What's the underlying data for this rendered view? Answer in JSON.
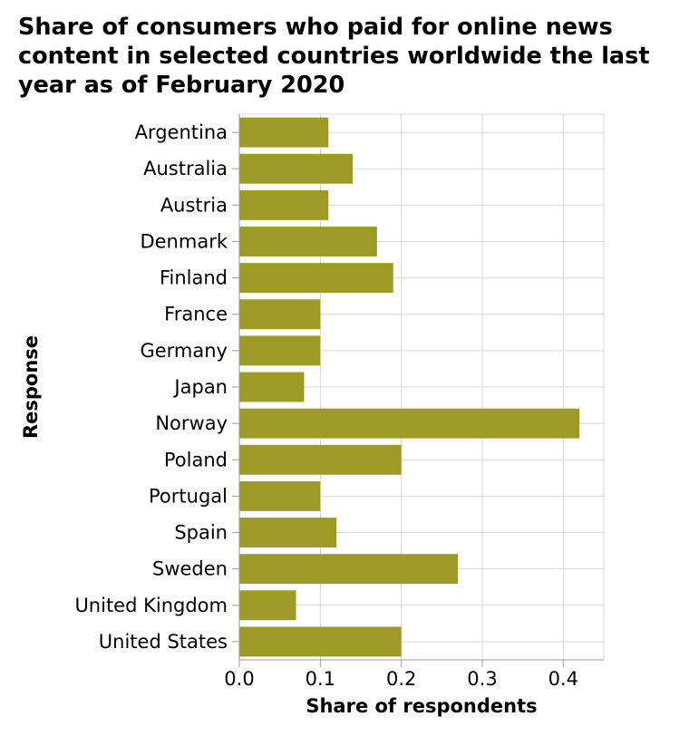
{
  "chart_data": {
    "type": "bar",
    "orientation": "horizontal",
    "title": "Share of consumers who paid for online news content in selected countries worldwide the last year as of February 2020",
    "xlabel": "Share of respondents",
    "ylabel": "Response",
    "categories": [
      "Argentina",
      "Australia",
      "Austria",
      "Denmark",
      "Finland",
      "France",
      "Germany",
      "Japan",
      "Norway",
      "Poland",
      "Portugal",
      "Spain",
      "Sweden",
      "United Kingdom",
      "United States"
    ],
    "values": [
      0.11,
      0.14,
      0.11,
      0.17,
      0.19,
      0.1,
      0.1,
      0.08,
      0.42,
      0.2,
      0.1,
      0.12,
      0.27,
      0.07,
      0.2
    ],
    "xlim": [
      0,
      0.45
    ],
    "xticks": [
      "0.0",
      "0.1",
      "0.2",
      "0.3",
      "0.4"
    ],
    "grid": true,
    "bar_color": "#9d9a26"
  }
}
